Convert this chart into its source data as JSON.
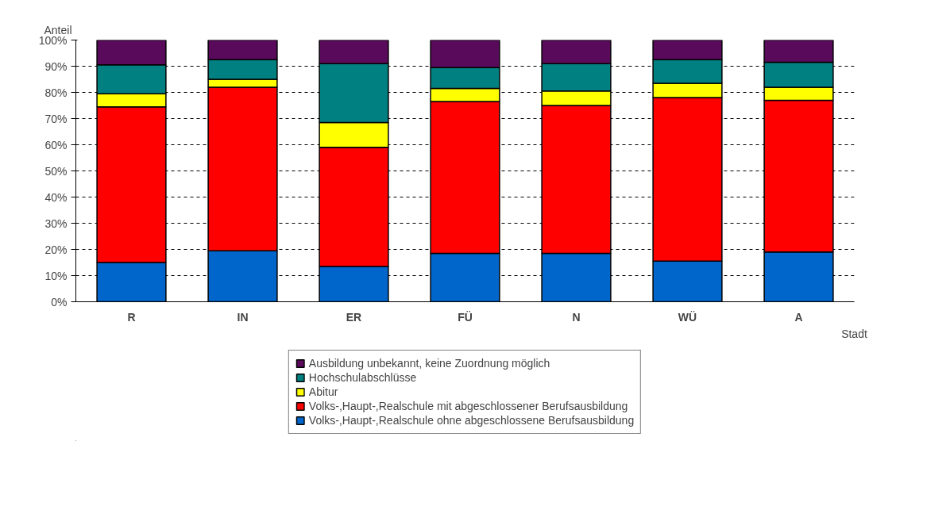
{
  "chart_data": {
    "type": "bar",
    "stacked": true,
    "xlabel": "Stadt",
    "ylabel": "Anteil",
    "categories": [
      "R",
      "IN",
      "ER",
      "FÜ",
      "N",
      "WÜ",
      "A"
    ],
    "series": [
      {
        "name": "Volks-,Haupt-,Realschule ohne abgeschlossene Berufsausbildung",
        "color": "#0066cc",
        "values": [
          15,
          19.5,
          13.5,
          18.5,
          18.5,
          15.5,
          19
        ]
      },
      {
        "name": "Volks-,Haupt-,Realschule mit abgeschlossener Berufsausbildung",
        "color": "#ff0000",
        "values": [
          59.5,
          62.5,
          45.5,
          58,
          56.5,
          62.5,
          58
        ]
      },
      {
        "name": "Abitur",
        "color": "#ffff00",
        "values": [
          5,
          3,
          9.5,
          5,
          5.5,
          5.5,
          5
        ]
      },
      {
        "name": "Hochschulabschlüsse",
        "color": "#008080",
        "values": [
          11,
          7.5,
          22.5,
          8,
          10.5,
          9,
          9.5
        ]
      },
      {
        "name": "Ausbildung unbekannt, keine Zuordnung möglich",
        "color": "#5a0a5a",
        "values": [
          9.5,
          7.5,
          9,
          10.5,
          9,
          7.5,
          8.5
        ]
      }
    ],
    "ylim": [
      0,
      100
    ],
    "yticks": [
      {
        "value": 0,
        "label": "0%"
      },
      {
        "value": 10,
        "label": "10%"
      },
      {
        "value": 20,
        "label": "20%"
      },
      {
        "value": 30,
        "label": "30%"
      },
      {
        "value": 40,
        "label": "40%"
      },
      {
        "value": 50,
        "label": "50%"
      },
      {
        "value": 60,
        "label": "60%"
      },
      {
        "value": 70,
        "label": "70%"
      },
      {
        "value": 80,
        "label": "80%"
      },
      {
        "value": 90,
        "label": "90%"
      },
      {
        "value": 100,
        "label": "100%"
      }
    ],
    "grid": "y",
    "legend": "bottom"
  }
}
